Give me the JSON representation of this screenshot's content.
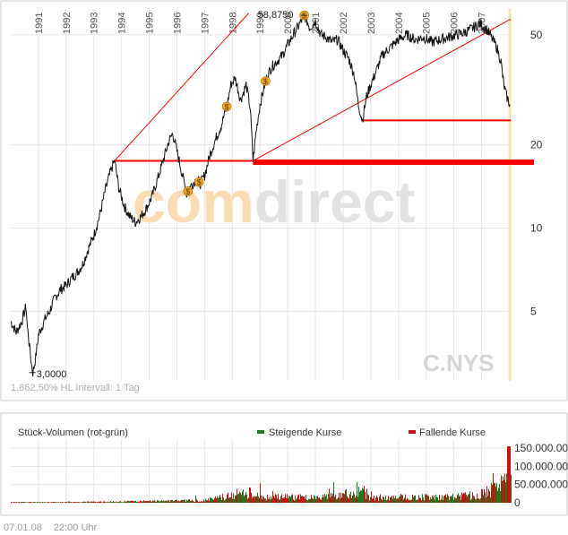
{
  "chart_data": [
    {
      "type": "line",
      "symbol": "C.NYS",
      "watermark": "comdirect",
      "y_scale": "log",
      "y_ticks": [
        5,
        10,
        20,
        50
      ],
      "ylim": [
        2.8,
        62
      ],
      "x_tick_labels": [
        "1991",
        "1992",
        "1993",
        "1994",
        "1995",
        "1996",
        "1997",
        "1998",
        "1999",
        "2000",
        "2001",
        "2002",
        "2003",
        "2004",
        "2005",
        "2006",
        "2007"
      ],
      "x_range": [
        1990.0,
        2008.05
      ],
      "max_label": "58,8750",
      "min_label": "3,0000",
      "status_text": "1.862,50% HL  Intervall: 1 Tag",
      "series": [
        {
          "points": [
            [
              1990.0,
              4.6
            ],
            [
              1990.2,
              4.2
            ],
            [
              1990.4,
              4.6
            ],
            [
              1990.55,
              5.2
            ],
            [
              1990.6,
              4.4
            ],
            [
              1990.75,
              3.2
            ],
            [
              1990.8,
              3.0
            ],
            [
              1990.9,
              3.4
            ],
            [
              1991.0,
              4.1
            ],
            [
              1991.2,
              4.6
            ],
            [
              1991.4,
              5.0
            ],
            [
              1991.6,
              5.6
            ],
            [
              1991.8,
              6.0
            ],
            [
              1992.0,
              6.2
            ],
            [
              1992.2,
              6.6
            ],
            [
              1992.4,
              6.9
            ],
            [
              1992.6,
              7.4
            ],
            [
              1992.8,
              8.4
            ],
            [
              1993.0,
              9.4
            ],
            [
              1993.2,
              11.0
            ],
            [
              1993.4,
              13.5
            ],
            [
              1993.6,
              16.0
            ],
            [
              1993.75,
              17.5
            ],
            [
              1993.9,
              14.0
            ],
            [
              1994.1,
              12.0
            ],
            [
              1994.3,
              11.0
            ],
            [
              1994.5,
              10.5
            ],
            [
              1994.7,
              11.0
            ],
            [
              1994.9,
              11.8
            ],
            [
              1995.1,
              13.0
            ],
            [
              1995.3,
              15.0
            ],
            [
              1995.5,
              17.5
            ],
            [
              1995.7,
              20.5
            ],
            [
              1995.85,
              22.0
            ],
            [
              1996.0,
              19.0
            ],
            [
              1996.2,
              15.5
            ],
            [
              1996.35,
              13.3
            ],
            [
              1996.5,
              14.2
            ],
            [
              1996.7,
              15.0
            ],
            [
              1996.85,
              14.5
            ],
            [
              1997.0,
              15.5
            ],
            [
              1997.2,
              18.5
            ],
            [
              1997.4,
              21.0
            ],
            [
              1997.6,
              23.5
            ],
            [
              1997.8,
              27.5
            ],
            [
              1997.95,
              33.0
            ],
            [
              1998.1,
              35.0
            ],
            [
              1998.3,
              29.0
            ],
            [
              1998.5,
              33.0
            ],
            [
              1998.65,
              27.0
            ],
            [
              1998.75,
              17.5
            ],
            [
              1998.85,
              22.0
            ],
            [
              1999.0,
              28.0
            ],
            [
              1999.2,
              34.0
            ],
            [
              1999.4,
              38.0
            ],
            [
              1999.6,
              40.0
            ],
            [
              1999.8,
              42.0
            ],
            [
              2000.0,
              46.0
            ],
            [
              2000.2,
              50.0
            ],
            [
              2000.4,
              54.0
            ],
            [
              2000.6,
              58.8
            ],
            [
              2000.8,
              53.0
            ],
            [
              2001.0,
              56.0
            ],
            [
              2001.2,
              50.0
            ],
            [
              2001.4,
              49.0
            ],
            [
              2001.6,
              47.0
            ],
            [
              2001.8,
              48.0
            ],
            [
              2002.0,
              44.0
            ],
            [
              2002.2,
              41.0
            ],
            [
              2002.4,
              36.0
            ],
            [
              2002.55,
              28.0
            ],
            [
              2002.7,
              24.5
            ],
            [
              2002.85,
              30.0
            ],
            [
              2003.0,
              33.0
            ],
            [
              2003.2,
              37.0
            ],
            [
              2003.4,
              42.0
            ],
            [
              2003.6,
              44.0
            ],
            [
              2003.8,
              46.0
            ],
            [
              2004.0,
              48.0
            ],
            [
              2004.3,
              50.0
            ],
            [
              2004.6,
              48.0
            ],
            [
              2004.9,
              49.0
            ],
            [
              2005.2,
              47.0
            ],
            [
              2005.5,
              48.0
            ],
            [
              2005.8,
              49.0
            ],
            [
              2006.1,
              50.0
            ],
            [
              2006.4,
              51.0
            ],
            [
              2006.7,
              53.0
            ],
            [
              2006.95,
              55.0
            ],
            [
              2007.2,
              52.0
            ],
            [
              2007.4,
              48.0
            ],
            [
              2007.55,
              45.0
            ],
            [
              2007.7,
              40.0
            ],
            [
              2007.8,
              33.0
            ],
            [
              2007.9,
              30.0
            ],
            [
              2008.02,
              28.0
            ]
          ]
        }
      ]
    },
    {
      "type": "bar",
      "title": "Stück-Volumen (rot-grün)",
      "legend": [
        "Steigende Kurse",
        "Fallende Kurse"
      ],
      "y_ticks_labels": [
        "0",
        "50.000.000",
        "100.000.000",
        "150.000.000"
      ],
      "y_ticks": [
        0,
        50000000,
        100000000,
        150000000
      ],
      "ylim": [
        0,
        160000000
      ],
      "x_range": [
        1990.0,
        2008.05
      ],
      "series": [
        {
          "name": "Steigende Kurse",
          "color": "#1a7a1a",
          "values": [
            [
              1990.0,
              2000000
            ],
            [
              1991.0,
              2000000
            ],
            [
              1992.0,
              2500000
            ],
            [
              1993.0,
              3000000
            ],
            [
              1994.0,
              4000000
            ],
            [
              1995.0,
              5000000
            ],
            [
              1996.0,
              6000000
            ],
            [
              1997.0,
              8000000
            ],
            [
              1998.0,
              22000000
            ],
            [
              1998.5,
              30000000
            ],
            [
              1999.0,
              18000000
            ],
            [
              2000.0,
              16000000
            ],
            [
              2001.0,
              15000000
            ],
            [
              2002.0,
              22000000
            ],
            [
              2002.5,
              40000000
            ],
            [
              2003.0,
              15000000
            ],
            [
              2004.0,
              16000000
            ],
            [
              2005.0,
              17000000
            ],
            [
              2006.0,
              18000000
            ],
            [
              2007.0,
              25000000
            ],
            [
              2007.7,
              50000000
            ],
            [
              2008.0,
              60000000
            ]
          ]
        },
        {
          "name": "Fallende Kurse",
          "color": "#cc1010",
          "values": [
            [
              1990.0,
              2000000
            ],
            [
              1991.0,
              2000000
            ],
            [
              1992.0,
              2500000
            ],
            [
              1993.0,
              3000000
            ],
            [
              1994.0,
              4000000
            ],
            [
              1995.0,
              5000000
            ],
            [
              1996.0,
              6000000
            ],
            [
              1997.0,
              8000000
            ],
            [
              1998.0,
              24000000
            ],
            [
              1998.6,
              32000000
            ],
            [
              1999.0,
              18000000
            ],
            [
              2000.0,
              17000000
            ],
            [
              2001.0,
              16000000
            ],
            [
              2002.0,
              24000000
            ],
            [
              2002.6,
              44000000
            ],
            [
              2003.0,
              16000000
            ],
            [
              2004.0,
              17000000
            ],
            [
              2005.0,
              17000000
            ],
            [
              2006.0,
              19000000
            ],
            [
              2007.0,
              26000000
            ],
            [
              2007.8,
              70000000
            ],
            [
              2008.0,
              160000000
            ]
          ]
        }
      ]
    }
  ],
  "footer": {
    "date": "07.01.08",
    "time": "22:00 Uhr"
  },
  "colors": {
    "price_line": "#111111",
    "trend": "#ff0000",
    "grid": "#e6e6e6",
    "border": "#c8c8c8",
    "cursor": "#f4e4a8",
    "marker": "#f5a623",
    "watermark_orange": "#fbdcb0",
    "watermark_gray": "#e2e2e2"
  },
  "dividend_markers": [
    1996.4,
    1996.8,
    1997.8,
    1999.2,
    2000.6
  ]
}
